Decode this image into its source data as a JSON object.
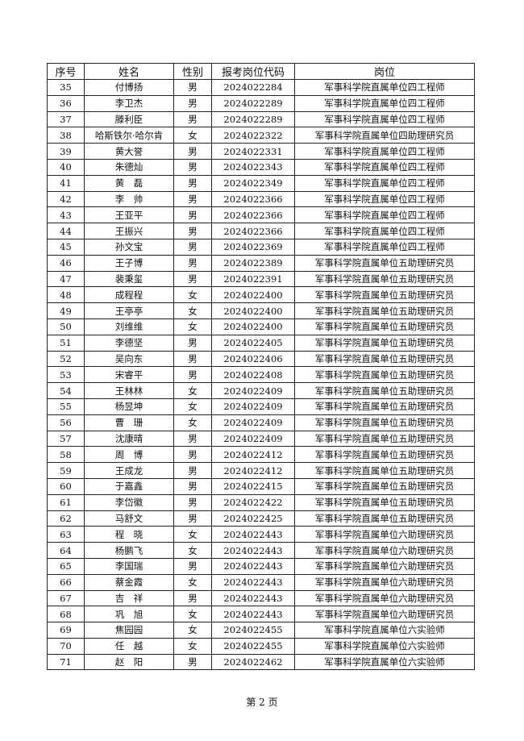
{
  "table": {
    "headers": [
      "序号",
      "姓名",
      "性别",
      "报考岗位代码",
      "岗位"
    ],
    "rows": [
      [
        "35",
        "付博扬",
        "男",
        "2024022284",
        "军事科学院直属单位四工程师"
      ],
      [
        "36",
        "李卫杰",
        "男",
        "2024022289",
        "军事科学院直属单位四工程师"
      ],
      [
        "37",
        "滕利臣",
        "男",
        "2024022289",
        "军事科学院直属单位四工程师"
      ],
      [
        "38",
        "哈斯铁尔·哈尔肯",
        "女",
        "2024022322",
        "军事科学院直属单位四助理研究员"
      ],
      [
        "39",
        "黄大誉",
        "男",
        "2024022331",
        "军事科学院直属单位四工程师"
      ],
      [
        "40",
        "朱德灿",
        "男",
        "2024022343",
        "军事科学院直属单位四工程师"
      ],
      [
        "41",
        "黄　磊",
        "男",
        "2024022349",
        "军事科学院直属单位四工程师"
      ],
      [
        "42",
        "李　帅",
        "男",
        "2024022366",
        "军事科学院直属单位四工程师"
      ],
      [
        "43",
        "王亚平",
        "男",
        "2024022366",
        "军事科学院直属单位四工程师"
      ],
      [
        "44",
        "王振兴",
        "男",
        "2024022366",
        "军事科学院直属单位四工程师"
      ],
      [
        "45",
        "孙文宝",
        "男",
        "2024022369",
        "军事科学院直属单位四工程师"
      ],
      [
        "46",
        "王子博",
        "男",
        "2024022389",
        "军事科学院直属单位五助理研究员"
      ],
      [
        "47",
        "裴秉玺",
        "男",
        "2024022391",
        "军事科学院直属单位五助理研究员"
      ],
      [
        "48",
        "成程程",
        "女",
        "2024022400",
        "军事科学院直属单位五助理研究员"
      ],
      [
        "49",
        "王亭亭",
        "女",
        "2024022400",
        "军事科学院直属单位五助理研究员"
      ],
      [
        "50",
        "刘维维",
        "女",
        "2024022400",
        "军事科学院直属单位五助理研究员"
      ],
      [
        "51",
        "李德坚",
        "男",
        "2024022405",
        "军事科学院直属单位五助理研究员"
      ],
      [
        "52",
        "吴向东",
        "男",
        "2024022406",
        "军事科学院直属单位五助理研究员"
      ],
      [
        "53",
        "宋睿平",
        "男",
        "2024022408",
        "军事科学院直属单位五助理研究员"
      ],
      [
        "54",
        "王林林",
        "女",
        "2024022409",
        "军事科学院直属单位五助理研究员"
      ],
      [
        "55",
        "杨昱坤",
        "女",
        "2024022409",
        "军事科学院直属单位五助理研究员"
      ],
      [
        "56",
        "曹　珊",
        "女",
        "2024022409",
        "军事科学院直属单位五助理研究员"
      ],
      [
        "57",
        "沈康晴",
        "男",
        "2024022409",
        "军事科学院直属单位五助理研究员"
      ],
      [
        "58",
        "周　博",
        "男",
        "2024022412",
        "军事科学院直属单位五助理研究员"
      ],
      [
        "59",
        "王成龙",
        "男",
        "2024022412",
        "军事科学院直属单位五助理研究员"
      ],
      [
        "60",
        "于嘉鑫",
        "男",
        "2024022415",
        "军事科学院直属单位五助理研究员"
      ],
      [
        "61",
        "李岱徽",
        "男",
        "2024022422",
        "军事科学院直属单位五助理研究员"
      ],
      [
        "62",
        "马舒文",
        "男",
        "2024022425",
        "军事科学院直属单位五助理研究员"
      ],
      [
        "63",
        "程　晓",
        "女",
        "2024022443",
        "军事科学院直属单位六助理研究员"
      ],
      [
        "64",
        "杨鹏飞",
        "女",
        "2024022443",
        "军事科学院直属单位六助理研究员"
      ],
      [
        "65",
        "李国瑞",
        "男",
        "2024022443",
        "军事科学院直属单位六助理研究员"
      ],
      [
        "66",
        "蔡金霞",
        "女",
        "2024022443",
        "军事科学院直属单位六助理研究员"
      ],
      [
        "67",
        "吉　祥",
        "男",
        "2024022443",
        "军事科学院直属单位六助理研究员"
      ],
      [
        "68",
        "巩　旭",
        "女",
        "2024022443",
        "军事科学院直属单位六助理研究员"
      ],
      [
        "69",
        "焦园园",
        "女",
        "2024022455",
        "军事科学院直属单位六实验师"
      ],
      [
        "70",
        "任　越",
        "女",
        "2024022455",
        "军事科学院直属单位六实验师"
      ],
      [
        "71",
        "赵　阳",
        "男",
        "2024022462",
        "军事科学院直属单位六实验师"
      ]
    ]
  },
  "footer": {
    "page_label": "第 2 页"
  }
}
